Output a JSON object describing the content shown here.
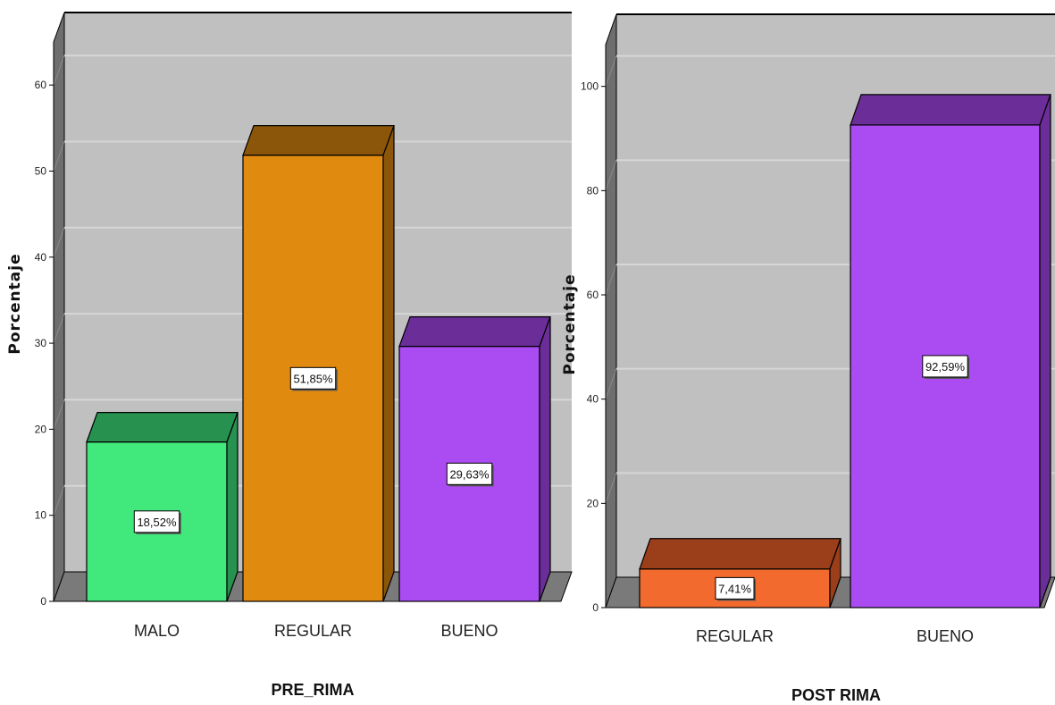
{
  "chart_data": [
    {
      "type": "bar",
      "title": "",
      "xlabel": "PRE_RIMA",
      "ylabel": "Porcentaje",
      "ylim": [
        0,
        65
      ],
      "yticks": [
        0,
        10,
        20,
        30,
        40,
        50,
        60
      ],
      "grid": true,
      "categories": [
        "MALO",
        "REGULAR",
        "BUENO"
      ],
      "values": [
        18.52,
        51.85,
        29.63
      ],
      "data_labels": [
        "18,52%",
        "51,85%",
        "29,63%"
      ],
      "colors": [
        "#41e97c",
        "#e08a10",
        "#ab4cf2"
      ],
      "side_colors": [
        "#27914f",
        "#8c560a",
        "#6b2e99"
      ]
    },
    {
      "type": "bar",
      "title": "",
      "xlabel": "POST RIMA",
      "ylabel": "Porcentaje",
      "ylim": [
        0,
        108
      ],
      "yticks": [
        0,
        20,
        40,
        60,
        80,
        100
      ],
      "grid": true,
      "categories": [
        "REGULAR",
        "BUENO"
      ],
      "values": [
        7.41,
        92.59
      ],
      "data_labels": [
        "7,41%",
        "92,59%"
      ],
      "colors": [
        "#f26a2e",
        "#ab4cf2"
      ],
      "side_colors": [
        "#9a3f1a",
        "#6b2e99"
      ]
    }
  ]
}
